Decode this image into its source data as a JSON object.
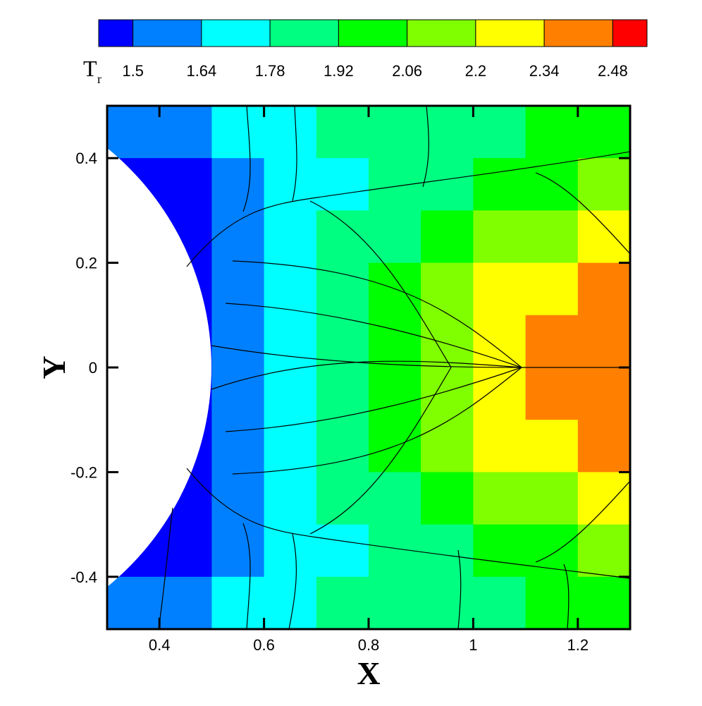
{
  "chart_data": {
    "type": "contour",
    "xlabel": "X",
    "ylabel": "Y",
    "xlim": [
      0.3,
      1.3
    ],
    "ylim": [
      -0.5,
      0.5
    ],
    "xticks": [
      0.4,
      0.6,
      0.8,
      1,
      1.2
    ],
    "yticks": [
      -0.4,
      -0.2,
      0,
      0.2,
      0.4
    ],
    "colorbar_label": "T",
    "colorbar_label_sub": "r",
    "colorbar_lim": [
      1.43,
      2.55
    ],
    "levels": [
      1.5,
      1.64,
      1.78,
      1.92,
      2.06,
      2.2,
      2.34,
      2.48
    ],
    "colors": [
      "#0000ff",
      "#0080ff",
      "#00ffff",
      "#00ff80",
      "#00ff00",
      "#80ff00",
      "#ffff00",
      "#ff8000",
      "#ff0000"
    ],
    "x": [
      0.35,
      0.45,
      0.55,
      0.65,
      0.75,
      0.85,
      0.95,
      1.05,
      1.15,
      1.25
    ],
    "y": [
      0.45,
      0.35,
      0.25,
      0.15,
      0.05,
      -0.05,
      -0.15,
      -0.25,
      -0.35,
      -0.45
    ],
    "z": [
      [
        1.55,
        1.6,
        1.7,
        1.75,
        1.8,
        1.85,
        1.88,
        1.9,
        1.95,
        2.0
      ],
      [
        1.45,
        1.45,
        1.55,
        1.7,
        1.72,
        1.8,
        1.85,
        1.95,
        2.0,
        2.1
      ],
      [
        1.45,
        1.45,
        1.58,
        1.7,
        1.8,
        1.9,
        2.0,
        2.1,
        2.15,
        2.25
      ],
      [
        1.45,
        1.45,
        1.55,
        1.7,
        1.82,
        1.95,
        2.1,
        2.22,
        2.3,
        2.4
      ],
      [
        1.45,
        1.45,
        1.55,
        1.72,
        1.85,
        2.0,
        2.15,
        2.3,
        2.4,
        2.42
      ],
      [
        1.45,
        1.45,
        1.55,
        1.72,
        1.85,
        2.0,
        2.15,
        2.3,
        2.4,
        2.42
      ],
      [
        1.45,
        1.45,
        1.55,
        1.7,
        1.82,
        1.95,
        2.1,
        2.22,
        2.3,
        2.4
      ],
      [
        1.45,
        1.45,
        1.58,
        1.7,
        1.8,
        1.9,
        2.0,
        2.1,
        2.15,
        2.25
      ],
      [
        1.45,
        1.45,
        1.55,
        1.7,
        1.72,
        1.8,
        1.85,
        1.95,
        2.0,
        2.1
      ],
      [
        1.55,
        1.6,
        1.7,
        1.75,
        1.8,
        1.85,
        1.88,
        1.9,
        1.95,
        2.0
      ]
    ]
  }
}
